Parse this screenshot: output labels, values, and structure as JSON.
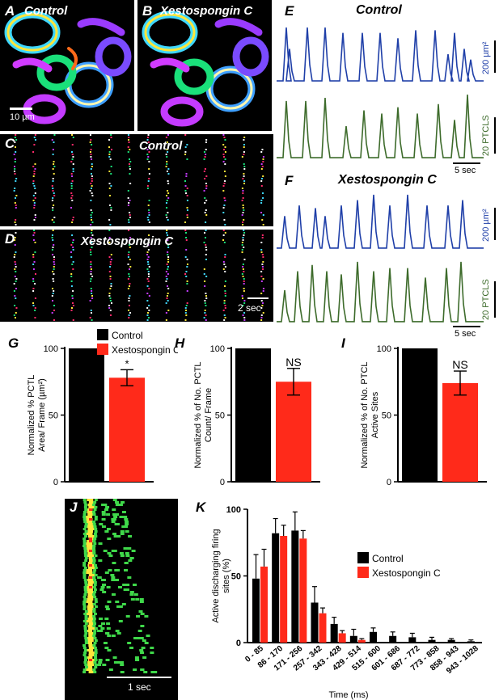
{
  "panels": {
    "A": {
      "letter": "A",
      "label": "Control",
      "scale": "10 µm"
    },
    "B": {
      "letter": "B",
      "label": "Xestospongin C"
    },
    "C": {
      "letter": "C",
      "label": "Control"
    },
    "D": {
      "letter": "D",
      "label": "Xestospongin C",
      "scale": "2 sec"
    },
    "E": {
      "letter": "E",
      "title": "Control",
      "scale_area": "200 µm²",
      "scale_count": "20 PTCLS",
      "scale_time": "5 sec"
    },
    "F": {
      "letter": "F",
      "title": "Xestospongin C",
      "scale_area": "200 µm²",
      "scale_count": "20 PTCLS",
      "scale_time": "5 sec"
    },
    "J": {
      "letter": "J",
      "scale": "1 sec"
    },
    "K": {
      "letter": "K"
    }
  },
  "colors": {
    "area_trace": "#1f3fa8",
    "count_trace": "#3d6b2b",
    "control": "#000000",
    "xesto": "#ff2a1a",
    "area_scale": "#1f3fa8",
    "count_scale": "#3d6b2b"
  },
  "chart_data": [
    {
      "panel": "G",
      "type": "bar",
      "categories": [
        "Control",
        "Xestospongin C"
      ],
      "values": [
        100,
        78
      ],
      "errors": [
        0,
        6
      ],
      "ylabel": "Normalized % PCTL Area/ Frame (µm²)",
      "ylabel_lines": [
        "Normalized % PCTL",
        "Area/ Frame (µm²)"
      ],
      "yticks": [
        "0",
        "50",
        "100"
      ],
      "ylim": [
        0,
        100
      ],
      "annotation": "*",
      "legend": [
        "Control",
        "Xestospongin C"
      ]
    },
    {
      "panel": "H",
      "type": "bar",
      "categories": [
        "Control",
        "Xestospongin C"
      ],
      "values": [
        100,
        75
      ],
      "errors": [
        0,
        10
      ],
      "ylabel": "Normalized % of No. PCTL Count/ Frame",
      "ylabel_lines": [
        "Normalized % of No. PCTL",
        "Count/ Frame"
      ],
      "yticks": [
        "0",
        "50",
        "100"
      ],
      "ylim": [
        0,
        100
      ],
      "annotation": "NS"
    },
    {
      "panel": "I",
      "type": "bar",
      "categories": [
        "Control",
        "Xestospongin C"
      ],
      "values": [
        100,
        74
      ],
      "errors": [
        0,
        9
      ],
      "ylabel": "Normalized % of No. PTCL Active Sites",
      "ylabel_lines": [
        "Normalized % of No. PTCL",
        "Active Sites"
      ],
      "yticks": [
        "0",
        "50",
        "100"
      ],
      "ylim": [
        0,
        100
      ],
      "annotation": "NS"
    },
    {
      "panel": "K",
      "type": "bar",
      "categories": [
        "0 - 85",
        "86 - 170",
        "171 - 256",
        "257 - 342",
        "343 - 428",
        "429 - 514",
        "515 - 600",
        "601 - 686",
        "687 - 772",
        "773 - 858",
        "858 - 943",
        "943 - 1028"
      ],
      "series": [
        {
          "name": "Control",
          "values": [
            48,
            82,
            84,
            30,
            14,
            5,
            8,
            5,
            4,
            2,
            2,
            1
          ],
          "errors": [
            18,
            11,
            14,
            12,
            5,
            5,
            3,
            3,
            3,
            2,
            1,
            1
          ]
        },
        {
          "name": "Xestospongin C",
          "values": [
            57,
            80,
            78,
            22,
            7,
            2,
            0,
            0,
            0,
            0,
            0,
            0
          ],
          "errors": [
            13,
            8,
            6,
            4,
            2,
            1,
            0,
            0,
            0,
            0,
            0,
            0
          ]
        }
      ],
      "xlabel": "Time (ms)",
      "ylabel": "Active discharging firing sites (%)",
      "ylabel_lines": [
        "Active discharging firing",
        "sites (%)"
      ],
      "yticks": [
        "0",
        "50",
        "100"
      ],
      "ylim": [
        0,
        100
      ],
      "legend": [
        "Control",
        "Xestospongin C"
      ]
    }
  ]
}
